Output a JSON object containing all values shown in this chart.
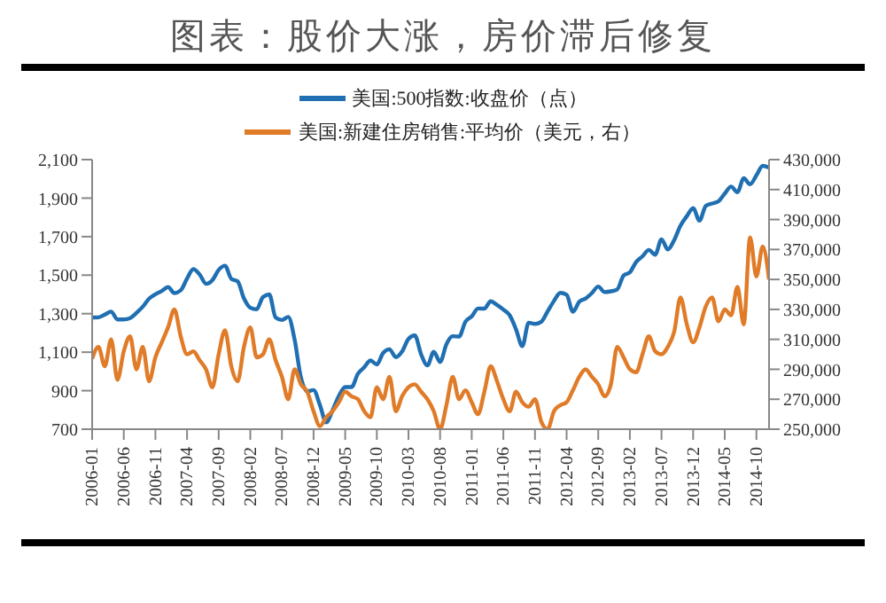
{
  "chart_data": {
    "type": "line",
    "title": "图表：股价大涨，房价滞后修复",
    "categories": [
      "2006-01",
      null,
      null,
      null,
      null,
      "2006-06",
      null,
      null,
      null,
      null,
      "2006-11",
      null,
      null,
      null,
      null,
      "2007-04",
      null,
      null,
      null,
      null,
      "2007-09",
      null,
      null,
      null,
      null,
      "2008-02",
      null,
      null,
      null,
      null,
      "2008-07",
      null,
      null,
      null,
      null,
      "2008-12",
      null,
      null,
      null,
      null,
      "2009-05",
      null,
      null,
      null,
      null,
      "2009-10",
      null,
      null,
      null,
      null,
      "2010-03",
      null,
      null,
      null,
      null,
      "2010-08",
      null,
      null,
      null,
      null,
      "2011-01",
      null,
      null,
      null,
      null,
      "2011-06",
      null,
      null,
      null,
      null,
      "2011-11",
      null,
      null,
      null,
      null,
      "2012-04",
      null,
      null,
      null,
      null,
      "2012-09",
      null,
      null,
      null,
      null,
      "2013-02",
      null,
      null,
      null,
      null,
      "2013-07",
      null,
      null,
      null,
      null,
      "2013-12",
      null,
      null,
      null,
      null,
      "2014-05",
      null,
      null,
      null,
      null,
      "2014-10",
      null,
      null
    ],
    "series": [
      {
        "name": "美国:500指数:收盘价（点）",
        "color": "#1f6fb2",
        "values": [
          1280,
          1281,
          1295,
          1311,
          1270,
          1270,
          1277,
          1304,
          1336,
          1378,
          1401,
          1418,
          1438,
          1407,
          1421,
          1482,
          1531,
          1503,
          1455,
          1474,
          1527,
          1549,
          1481,
          1468,
          1379,
          1331,
          1323,
          1386,
          1400,
          1280,
          1267,
          1283,
          1166,
          969,
          896,
          903,
          826,
          735,
          798,
          873,
          919,
          919,
          987,
          1021,
          1057,
          1036,
          1096,
          1115,
          1074,
          1104,
          1169,
          1187,
          1089,
          1031,
          1102,
          1049,
          1141,
          1183,
          1181,
          1258,
          1286,
          1327,
          1326,
          1364,
          1345,
          1321,
          1292,
          1219,
          1131,
          1253,
          1247,
          1258,
          1312,
          1366,
          1408,
          1398,
          1310,
          1362,
          1379,
          1407,
          1441,
          1412,
          1416,
          1426,
          1498,
          1515,
          1569,
          1598,
          1631,
          1606,
          1686,
          1633,
          1682,
          1757,
          1806,
          1848,
          1783,
          1859,
          1872,
          1884,
          1924,
          1960,
          1931,
          2003,
          1972,
          2018,
          2068,
          2059
        ]
      },
      {
        "name": "美国:新建住房销售:平均价（美元，右）",
        "color": "#e07b28",
        "axis": "y2",
        "values": [
          297000,
          305000,
          292000,
          310000,
          283000,
          302000,
          312000,
          290000,
          305000,
          282000,
          298000,
          308000,
          318000,
          330000,
          312000,
          300000,
          302000,
          296000,
          290000,
          278000,
          300000,
          316000,
          292000,
          282000,
          305000,
          318000,
          298000,
          300000,
          310000,
          296000,
          285000,
          270000,
          290000,
          280000,
          275000,
          262000,
          252000,
          258000,
          262000,
          268000,
          275000,
          272000,
          270000,
          262000,
          258000,
          278000,
          270000,
          285000,
          262000,
          272000,
          278000,
          280000,
          275000,
          270000,
          262000,
          250000,
          266000,
          285000,
          270000,
          276000,
          268000,
          260000,
          275000,
          292000,
          282000,
          270000,
          262000,
          275000,
          268000,
          265000,
          270000,
          255000,
          250000,
          262000,
          266000,
          268000,
          276000,
          285000,
          290000,
          285000,
          280000,
          272000,
          280000,
          305000,
          298000,
          290000,
          288000,
          300000,
          312000,
          302000,
          300000,
          305000,
          315000,
          338000,
          320000,
          308000,
          318000,
          332000,
          338000,
          322000,
          330000,
          326000,
          345000,
          320000,
          378000,
          352000,
          372000,
          350000
        ]
      }
    ],
    "ylim": [
      700,
      2100
    ],
    "yticks": [
      700,
      900,
      {
        "value": 1100,
        "label": "1,100"
      },
      {
        "value": 1300,
        "label": "1,300"
      },
      {
        "value": 1500,
        "label": "1,500"
      },
      {
        "value": 1700,
        "label": "1,700"
      },
      {
        "value": 1900,
        "label": "1,900"
      },
      {
        "value": 2100,
        "label": "2,100"
      }
    ],
    "y2lim": [
      250000,
      430000
    ],
    "y2ticks": [
      {
        "value": 250000,
        "label": "250,000"
      },
      {
        "value": 270000,
        "label": "270,000"
      },
      {
        "value": 290000,
        "label": "290,000"
      },
      {
        "value": 310000,
        "label": "310,000"
      },
      {
        "value": 330000,
        "label": "330,000"
      },
      {
        "value": 350000,
        "label": "350,000"
      },
      {
        "value": 370000,
        "label": "370,000"
      },
      {
        "value": 390000,
        "label": "390,000"
      },
      {
        "value": 410000,
        "label": "410,000"
      },
      {
        "value": 430000,
        "label": "430,000"
      }
    ],
    "legend": "top",
    "grid": false,
    "marker": "none",
    "line_style": "solid"
  }
}
